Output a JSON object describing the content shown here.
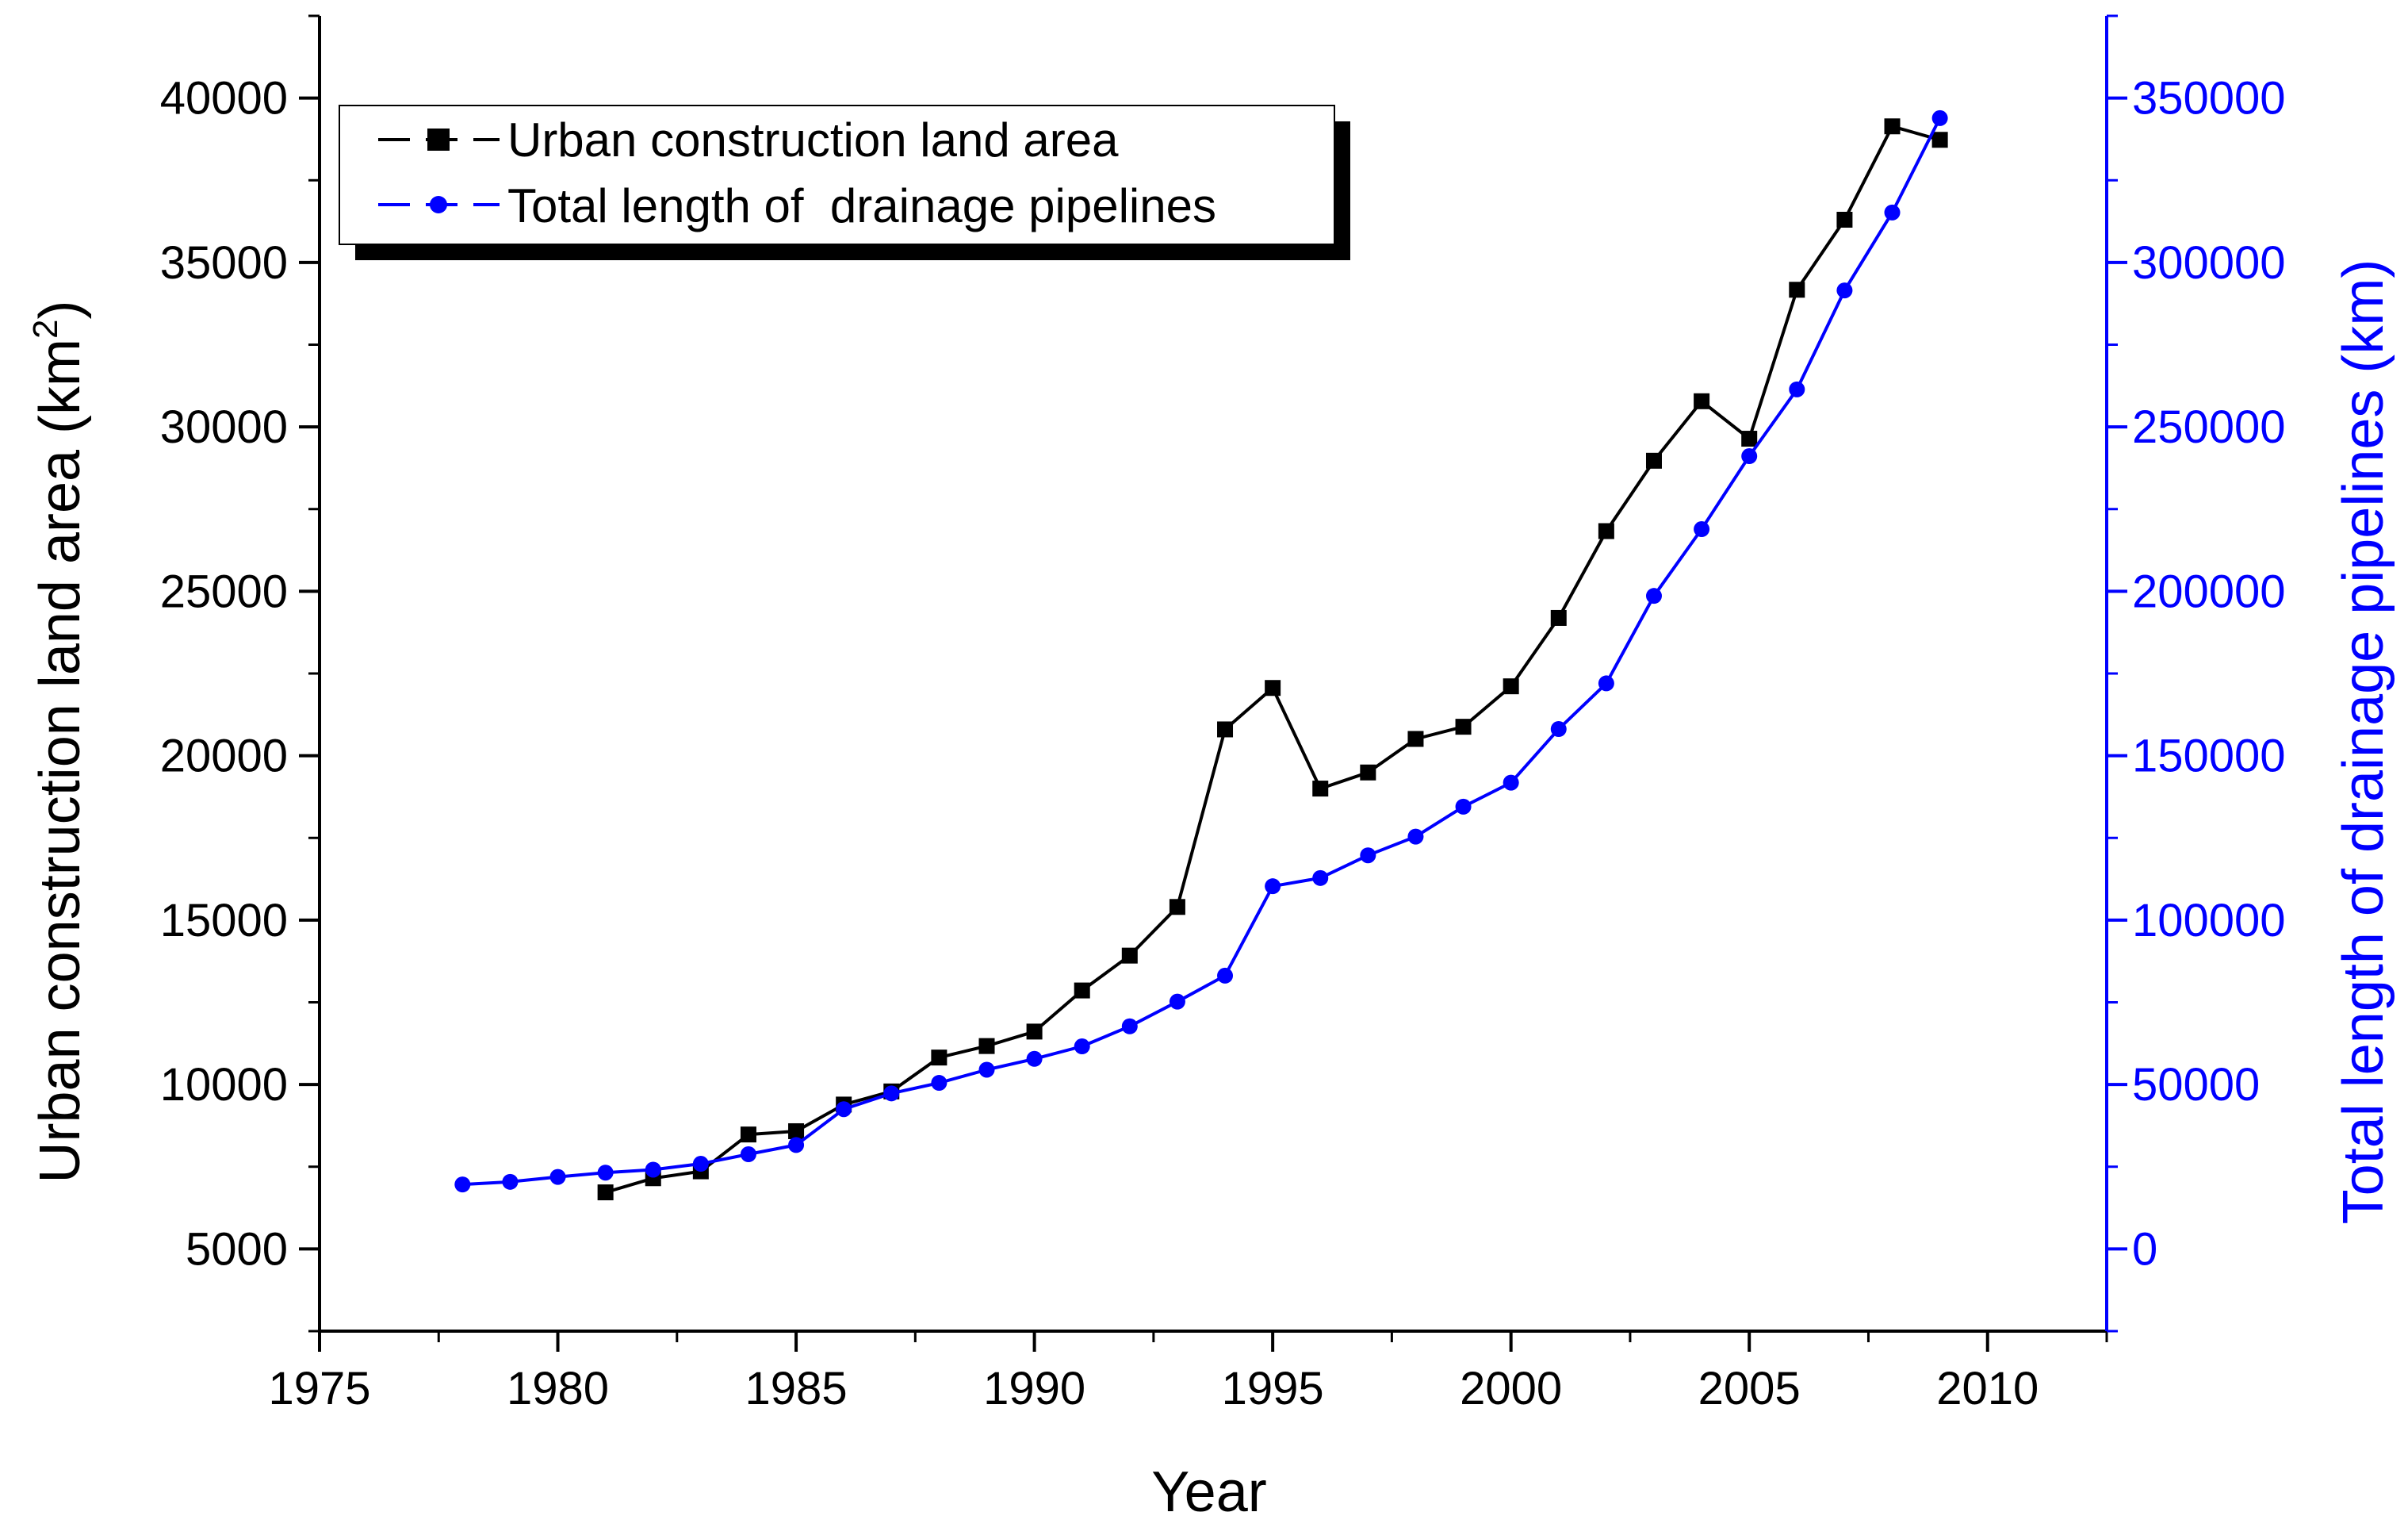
{
  "chart_data": {
    "type": "line",
    "title": "",
    "xlabel": "Year",
    "ylabel_left_main": "Urban construction land area (km",
    "ylabel_left_sup": "2",
    "ylabel_left_close": ")",
    "ylabel_right": "Total length of drainage pipelines (km)",
    "xlim": [
      1975,
      2012.5
    ],
    "ylim_left": [
      2500,
      42500
    ],
    "ylim_right": [
      -25000,
      375000
    ],
    "x_ticks": [
      1975,
      1980,
      1985,
      1990,
      1995,
      2000,
      2005,
      2010
    ],
    "x_tick_labels": [
      "1975",
      "1980",
      "1985",
      "1990",
      "1995",
      "2000",
      "2005",
      "2010"
    ],
    "y_left_ticks": [
      5000,
      10000,
      15000,
      20000,
      25000,
      30000,
      35000,
      40000
    ],
    "y_left_tick_labels": [
      "5000",
      "10000",
      "15000",
      "20000",
      "25000",
      "30000",
      "35000",
      "40000"
    ],
    "y_right_ticks": [
      0,
      50000,
      100000,
      150000,
      200000,
      250000,
      300000,
      350000
    ],
    "y_right_tick_labels": [
      "0",
      "50000",
      "100000",
      "150000",
      "200000",
      "250000",
      "300000",
      "350000"
    ],
    "legend_position": "top-left",
    "series": [
      {
        "name": "Urban construction land area",
        "axis": "left",
        "color": "#000000",
        "marker": "square",
        "x": [
          1981,
          1982,
          1983,
          1984,
          1985,
          1986,
          1987,
          1988,
          1989,
          1990,
          1991,
          1992,
          1993,
          1994,
          1995,
          1996,
          1997,
          1998,
          1999,
          2000,
          2001,
          2002,
          2003,
          2004,
          2005,
          2006,
          2007,
          2008,
          2009
        ],
        "values": [
          6720,
          7150,
          7360,
          8480,
          8580,
          9390,
          9790,
          10820,
          11170,
          11610,
          12860,
          13920,
          15400,
          20800,
          22060,
          19000,
          19490,
          20510,
          20880,
          22110,
          24190,
          26830,
          28970,
          30780,
          29640,
          34170,
          36300,
          39140,
          38730
        ]
      },
      {
        "name": "Total length of  drainage pipelines",
        "axis": "right",
        "color": "#0000ff",
        "marker": "circle",
        "x": [
          1978,
          1979,
          1980,
          1981,
          1982,
          1983,
          1984,
          1985,
          1986,
          1987,
          1988,
          1989,
          1990,
          1991,
          1992,
          1993,
          1994,
          1995,
          1996,
          1997,
          1998,
          1999,
          2000,
          2001,
          2002,
          2003,
          2004,
          2005,
          2006,
          2007,
          2008,
          2009
        ],
        "values": [
          19600,
          20400,
          21900,
          23200,
          24100,
          25900,
          28800,
          31600,
          42500,
          47300,
          50500,
          54500,
          57800,
          61600,
          67700,
          75200,
          83100,
          110300,
          112800,
          119700,
          125400,
          134500,
          141800,
          158100,
          172000,
          198600,
          218900,
          241100,
          261400,
          291500,
          315200,
          343900
        ]
      }
    ]
  }
}
